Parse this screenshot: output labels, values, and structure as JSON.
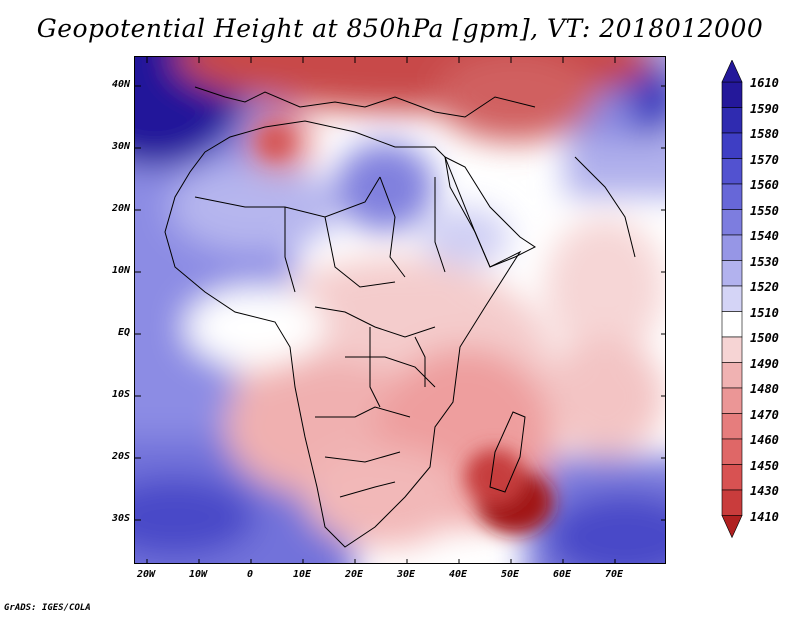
{
  "title": "Geopotential Height at 850hPa [gpm], VT: 2018012000",
  "credit": "GrADS: IGES/COLA",
  "map": {
    "lat_labels": [
      "40N",
      "30N",
      "20N",
      "10N",
      "EQ",
      "10S",
      "20S",
      "30S"
    ],
    "lon_labels": [
      "20W",
      "10W",
      "0",
      "10E",
      "20E",
      "30E",
      "40E",
      "50E",
      "60E",
      "70E"
    ],
    "colorbar_levels": [
      "1610",
      "1590",
      "1580",
      "1570",
      "1560",
      "1550",
      "1540",
      "1530",
      "1520",
      "1510",
      "1500",
      "1490",
      "1480",
      "1470",
      "1460",
      "1450",
      "1430",
      "1410"
    ],
    "colorbar_colors": [
      "#24189a",
      "#2f2bb0",
      "#3e3ec4",
      "#5252d0",
      "#6767d8",
      "#7d7ddf",
      "#9696e6",
      "#b2b2ee",
      "#d4d4f6",
      "#ffffff",
      "#f6d4d4",
      "#f0b2b2",
      "#eb9696",
      "#e67d7d",
      "#df6767",
      "#d85252",
      "#c93c3c",
      "#b02020"
    ]
  }
}
